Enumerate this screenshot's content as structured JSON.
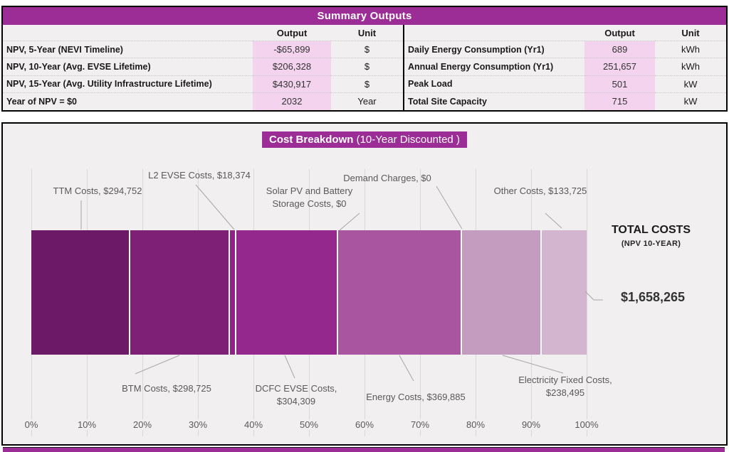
{
  "colors": {
    "accent": "#9c2d96",
    "highlight_pink": "#f3d3ee",
    "panel_bg": "#f1eff0",
    "gridline": "#d9d7d8",
    "muted_text": "#595959",
    "leader_line": "#a6a6a6"
  },
  "summary": {
    "title": "Summary Outputs",
    "columns": {
      "output": "Output",
      "unit": "Unit"
    },
    "left_rows": [
      {
        "label": "NPV, 5-Year (NEVI Timeline)",
        "output": "-$65,899",
        "unit": "$"
      },
      {
        "label": "NPV, 10-Year (Avg. EVSE Lifetime)",
        "output": "$206,328",
        "unit": "$"
      },
      {
        "label": "NPV, 15-Year (Avg. Utility Infrastructure Lifetime)",
        "output": "$430,917",
        "unit": "$"
      },
      {
        "label": "Year of NPV = $0",
        "output": "2032",
        "unit": "Year"
      }
    ],
    "right_rows": [
      {
        "label": "Daily Energy Consumption (Yr1)",
        "output": "689",
        "unit": "kWh"
      },
      {
        "label": "Annual Energy Consumption (Yr1)",
        "output": "251,657",
        "unit": "kWh"
      },
      {
        "label": "Peak Load",
        "output": "501",
        "unit": "kW"
      },
      {
        "label": "Total Site Capacity",
        "output": "715",
        "unit": "kW"
      }
    ]
  },
  "chart": {
    "title_bold": "Cost Breakdown",
    "title_note": " (10-Year Discounted )"
  },
  "chart_data": {
    "type": "bar",
    "subtype": "horizontal-stacked-100-percent",
    "title": "Cost Breakdown (10-Year Discounted )",
    "x_axis": {
      "ticks": [
        "0%",
        "10%",
        "20%",
        "30%",
        "40%",
        "50%",
        "60%",
        "70%",
        "80%",
        "90%",
        "100%"
      ],
      "range_pct": [
        0,
        100
      ],
      "grid": true
    },
    "total": {
      "label": "TOTAL COSTS",
      "sublabel": "(NPV 10-YEAR)",
      "value": 1658265,
      "value_text": "$1,658,265"
    },
    "segments": [
      {
        "name": "TTM Costs",
        "value": 294752,
        "pct": 17.775,
        "color": "#6c1a68",
        "callout": "TTM Costs, $294,752",
        "callout_position": "top"
      },
      {
        "name": "BTM Costs",
        "value": 298725,
        "pct": 18.014,
        "color": "#7d2076",
        "callout": "BTM Costs, $298,725",
        "callout_position": "bottom"
      },
      {
        "name": "L2 EVSE Costs",
        "value": 18374,
        "pct": 1.108,
        "color": "#8e2486",
        "callout": "L2 EVSE Costs, $18,374",
        "callout_position": "top"
      },
      {
        "name": "DCFC EVSE Costs",
        "value": 304309,
        "pct": 18.351,
        "color": "#94288c",
        "callout": "DCFC EVSE Costs, $304,309",
        "callout_position": "bottom"
      },
      {
        "name": "Solar PV and Battery Storage Costs",
        "value": 0,
        "pct": 0,
        "color": "#94288c",
        "callout": "Solar PV and Battery Storage Costs, $0",
        "callout_position": "top"
      },
      {
        "name": "Energy Costs",
        "value": 369885,
        "pct": 22.306,
        "color": "#aa55a0",
        "callout": "Energy Costs, $369,885",
        "callout_position": "bottom"
      },
      {
        "name": "Demand Charges",
        "value": 0,
        "pct": 0,
        "color": "#aa55a0",
        "callout": "Demand Charges, $0",
        "callout_position": "top"
      },
      {
        "name": "Electricity Fixed Costs",
        "value": 238495,
        "pct": 14.382,
        "color": "#c49cc0",
        "callout": "Electricity Fixed Costs, $238,495",
        "callout_position": "bottom"
      },
      {
        "name": "Other Costs",
        "value": 133725,
        "pct": 8.064,
        "color": "#d3b5cf",
        "callout": "Other Costs, $133,725",
        "callout_position": "top"
      }
    ]
  }
}
